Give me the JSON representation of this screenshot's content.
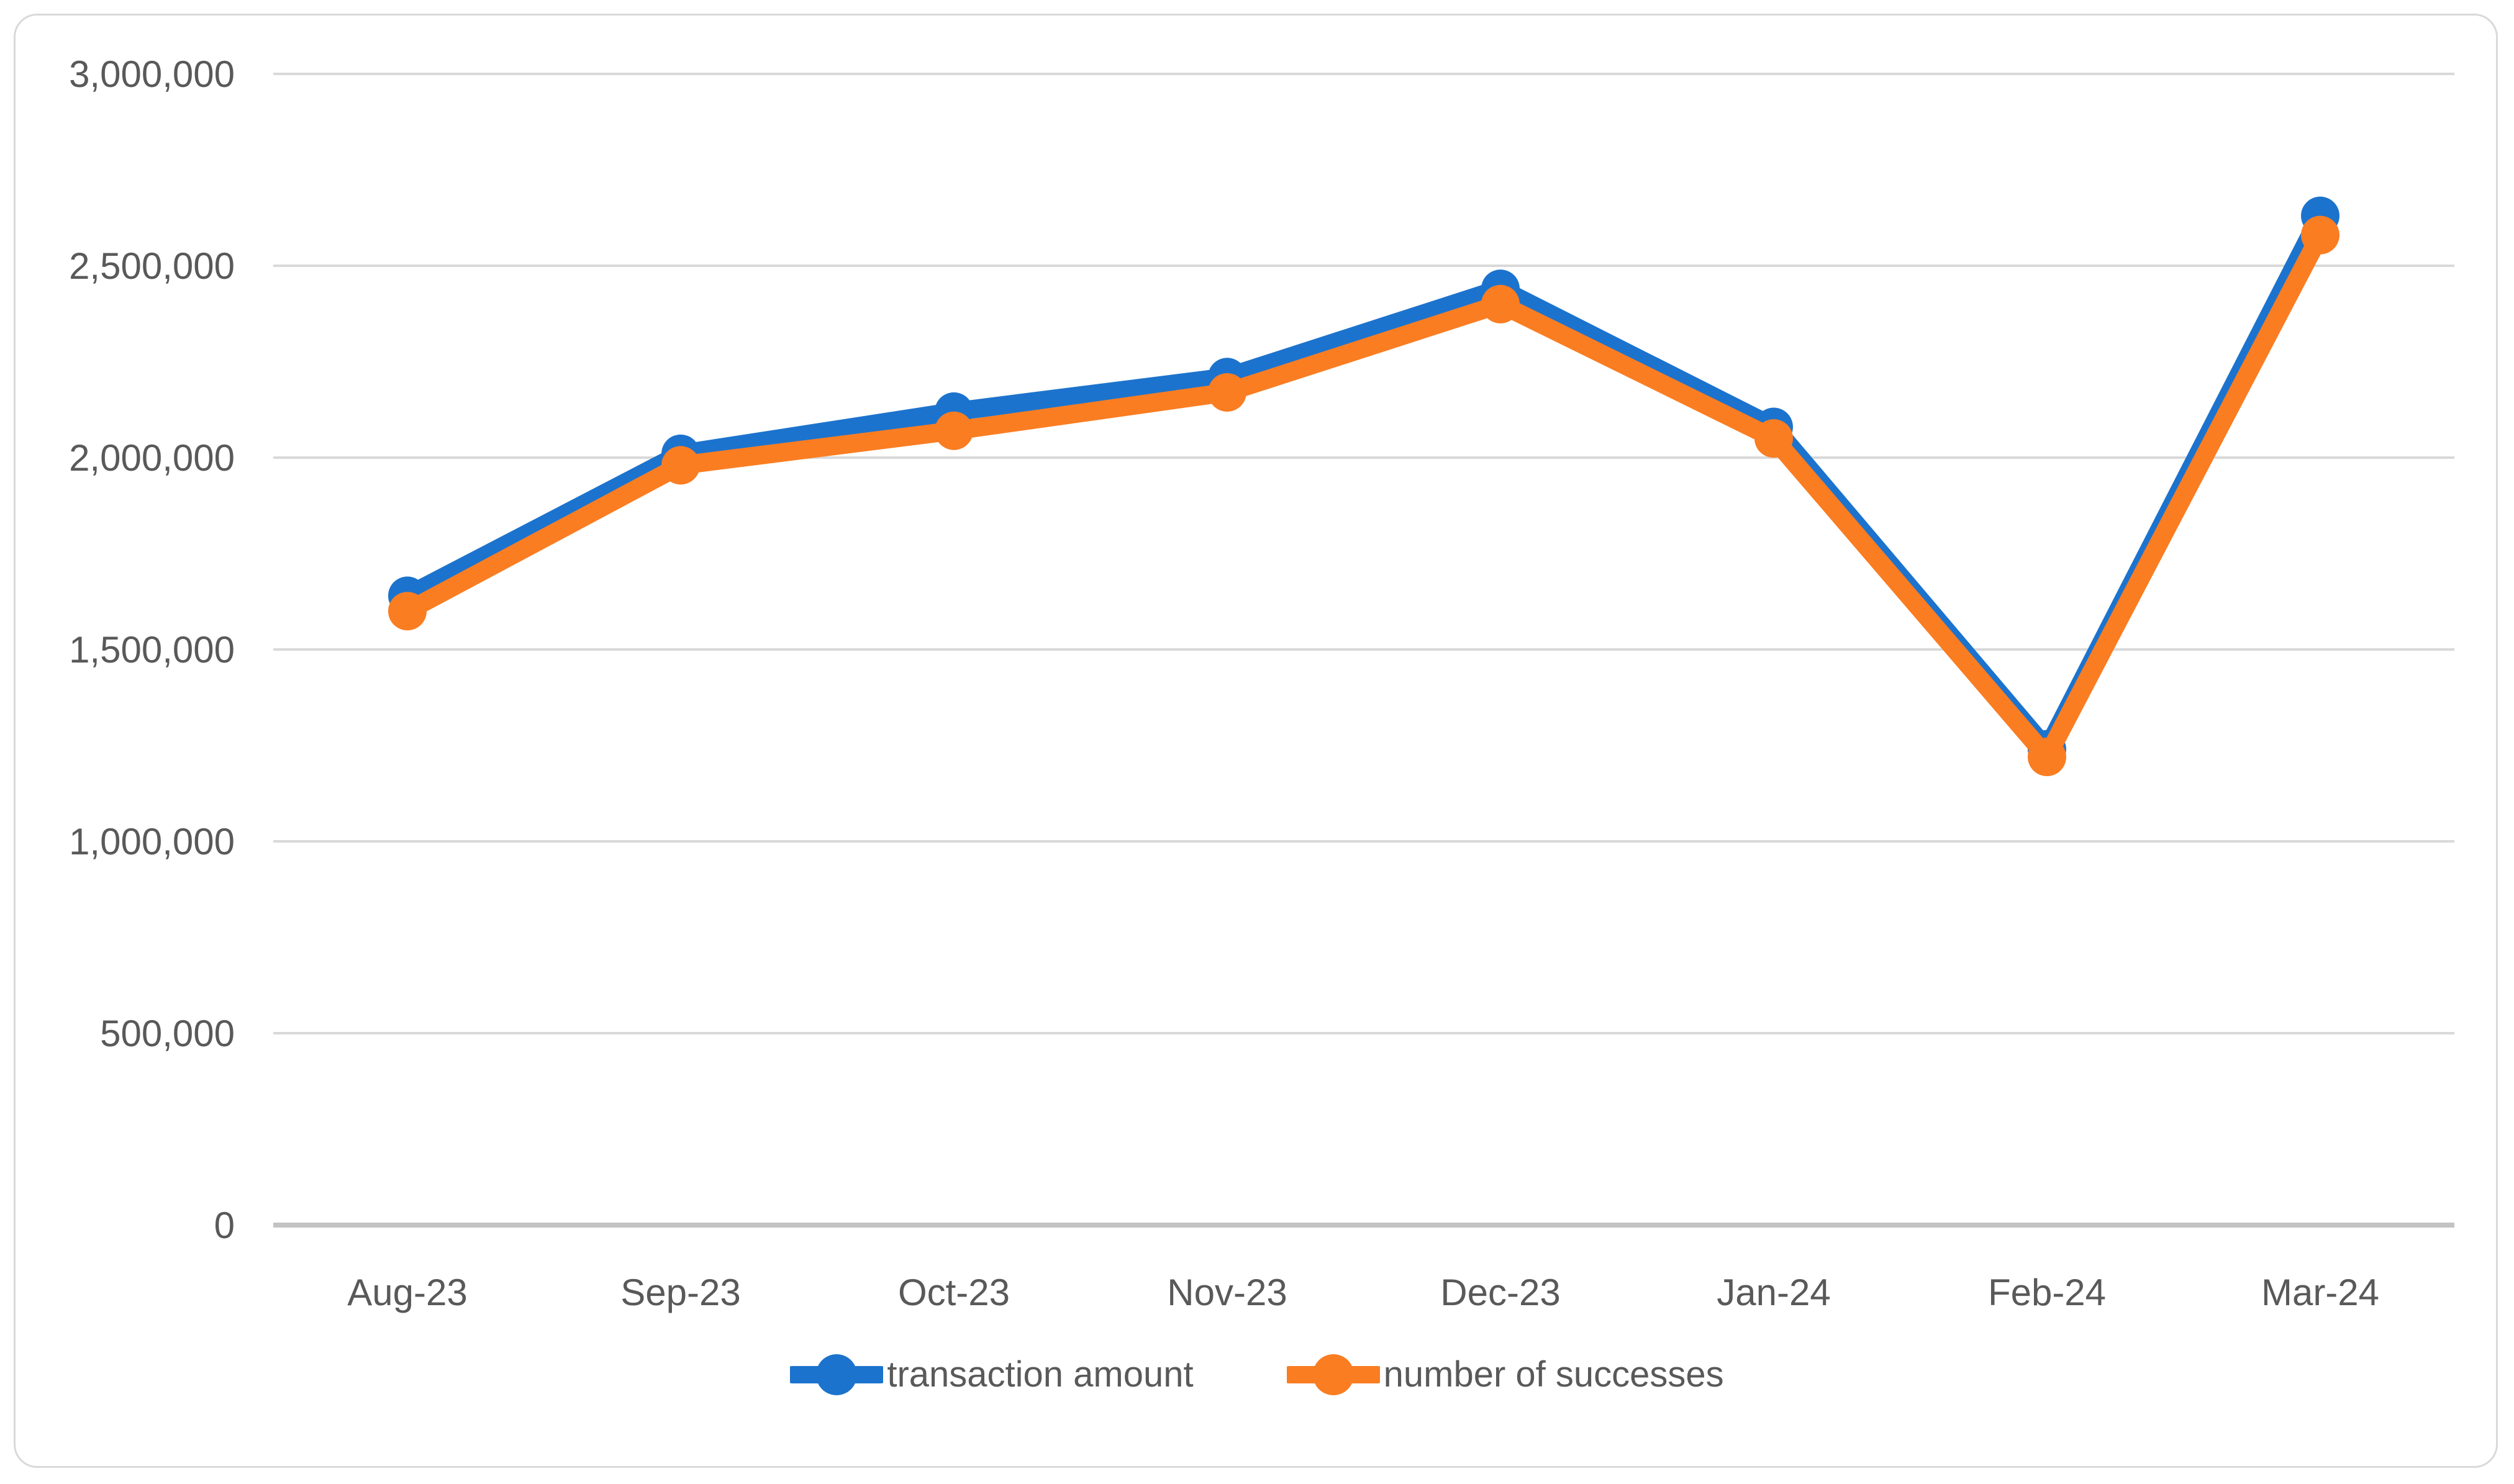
{
  "chart_data": {
    "type": "line",
    "title": "",
    "categories": [
      "Aug-23",
      "Sep-23",
      "Oct-23",
      "Nov-23",
      "Dec-23",
      "Jan-24",
      "Feb-24",
      "Mar-24"
    ],
    "series": [
      {
        "name": "transaction amount",
        "color": "#1C73CD",
        "values": [
          1640000,
          2010000,
          2120000,
          2210000,
          2440000,
          2080000,
          1240000,
          2630000
        ]
      },
      {
        "name": "number of successes",
        "color": "#FA7D22",
        "values": [
          1600000,
          1980000,
          2070000,
          2170000,
          2400000,
          2050000,
          1220000,
          2580000
        ]
      }
    ],
    "y_axis": {
      "min": 0,
      "max": 3000000,
      "step": 500000,
      "tick_labels": [
        "0",
        "500,000",
        "1,000,000",
        "1,500,000",
        "2,000,000",
        "2,500,000",
        "3,000,000"
      ]
    },
    "x_axis_label": "",
    "y_axis_label": "",
    "grid": true,
    "legend_position": "bottom"
  },
  "colors": {
    "gridline": "#D9D9D9",
    "axis_line": "#C3C3C3",
    "tick_text": "#595959",
    "frame_border": "#D9D9D9",
    "background": "#ffffff"
  }
}
